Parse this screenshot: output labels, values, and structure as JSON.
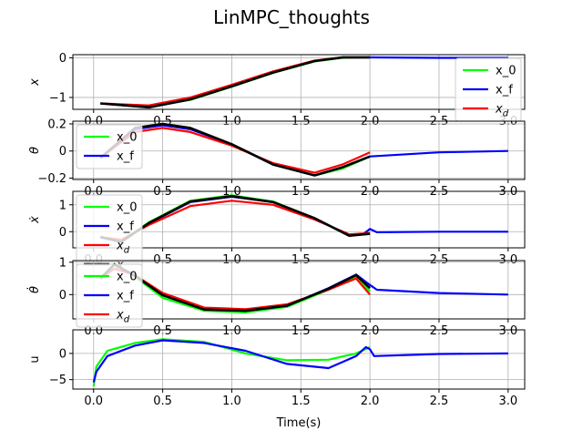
{
  "chart_data": {
    "type": "line",
    "title": "LinMPC_thoughts",
    "colors": {
      "x_0": "#00ff00",
      "x_f": "#0000ff",
      "x_d": "#ff0000",
      "x": "#000000"
    },
    "subplots": [
      {
        "ylabel": "x",
        "ylim": [
          -1.3,
          0.08
        ],
        "yticks": [
          0,
          -1
        ],
        "xticks_visible": false,
        "legend": [
          "x_0",
          "x_f",
          "x_d"
        ],
        "legend_position": "right",
        "series": [
          {
            "name": "x_f",
            "x": [
              0.05,
              0.4,
              0.7,
              1.0,
              1.3,
              1.6,
              1.8,
              2.0,
              2.5,
              3.0
            ],
            "y": [
              -1.15,
              -1.25,
              -1.05,
              -0.72,
              -0.37,
              -0.08,
              0.01,
              0.01,
              0.0,
              0.0
            ]
          },
          {
            "name": "x_0",
            "x": [
              0.05,
              0.4,
              0.7,
              1.0,
              1.3,
              1.6,
              1.8,
              2.0
            ],
            "y": [
              -1.15,
              -1.24,
              -1.06,
              -0.73,
              -0.38,
              -0.09,
              0.0,
              0.01
            ]
          },
          {
            "name": "x_d",
            "x": [
              0.05,
              0.4,
              0.7,
              1.0,
              1.3,
              1.6,
              1.8,
              2.0
            ],
            "y": [
              -1.15,
              -1.2,
              -1.0,
              -0.68,
              -0.34,
              -0.07,
              0.01,
              0.01
            ]
          },
          {
            "name": "x",
            "x": [
              0.05,
              0.4,
              0.7,
              1.0,
              1.3,
              1.6,
              1.8,
              2.0
            ],
            "y": [
              -1.15,
              -1.25,
              -1.05,
              -0.72,
              -0.37,
              -0.08,
              0.01,
              0.01
            ]
          }
        ]
      },
      {
        "ylabel": "θ",
        "ylim": [
          -0.21,
          0.22
        ],
        "yticks": [
          0.2,
          0.0,
          -0.2
        ],
        "xticks_visible": false,
        "legend": [
          "x_0",
          "x_f"
        ],
        "legend_position": "left",
        "series": [
          {
            "name": "x_f",
            "x": [
              0.05,
              0.3,
              0.5,
              0.7,
              1.0,
              1.3,
              1.6,
              1.8,
              2.0,
              2.5,
              3.0
            ],
            "y": [
              -0.05,
              0.16,
              0.19,
              0.16,
              0.05,
              -0.1,
              -0.18,
              -0.12,
              -0.04,
              -0.01,
              0.0
            ]
          },
          {
            "name": "x_0",
            "x": [
              0.05,
              0.3,
              0.5,
              0.7,
              1.0,
              1.3,
              1.6,
              1.8,
              2.0
            ],
            "y": [
              -0.05,
              0.17,
              0.2,
              0.17,
              0.05,
              -0.1,
              -0.18,
              -0.13,
              -0.04
            ]
          },
          {
            "name": "x_d",
            "x": [
              0.05,
              0.3,
              0.5,
              0.7,
              1.0,
              1.3,
              1.6,
              1.8,
              2.0
            ],
            "y": [
              -0.05,
              0.14,
              0.17,
              0.14,
              0.04,
              -0.09,
              -0.16,
              -0.1,
              -0.01
            ]
          },
          {
            "name": "x",
            "x": [
              0.05,
              0.3,
              0.5,
              0.7,
              1.0,
              1.3,
              1.6,
              1.8,
              2.0
            ],
            "y": [
              -0.05,
              0.17,
              0.2,
              0.17,
              0.05,
              -0.1,
              -0.18,
              -0.12,
              -0.04
            ]
          }
        ]
      },
      {
        "ylabel": "ẋ",
        "ylim": [
          -0.6,
          1.5
        ],
        "yticks": [
          1,
          0
        ],
        "xticks_visible": false,
        "legend": [
          "x_0",
          "x_f",
          "x_d",
          "x"
        ],
        "legend_position": "left",
        "series": [
          {
            "name": "x_f",
            "x": [
              0.05,
              0.2,
              0.4,
              0.7,
              1.0,
              1.3,
              1.6,
              1.85,
              1.95,
              2.0,
              2.05,
              2.5,
              3.0
            ],
            "y": [
              -0.2,
              -0.35,
              0.3,
              1.1,
              1.3,
              1.1,
              0.5,
              -0.15,
              -0.1,
              0.1,
              -0.02,
              0.0,
              0.0
            ]
          },
          {
            "name": "x_0",
            "x": [
              0.05,
              0.2,
              0.4,
              0.7,
              1.0,
              1.3,
              1.6,
              1.85,
              2.0
            ],
            "y": [
              -0.2,
              -0.35,
              0.35,
              1.15,
              1.35,
              1.12,
              0.5,
              -0.15,
              -0.08
            ]
          },
          {
            "name": "x_d",
            "x": [
              0.05,
              0.2,
              0.4,
              0.7,
              1.0,
              1.3,
              1.6,
              1.85,
              2.0
            ],
            "y": [
              -0.2,
              -0.3,
              0.25,
              0.95,
              1.15,
              1.0,
              0.45,
              -0.1,
              -0.05
            ]
          },
          {
            "name": "x",
            "x": [
              0.05,
              0.2,
              0.4,
              0.7,
              1.0,
              1.3,
              1.6,
              1.85,
              2.0
            ],
            "y": [
              -0.2,
              -0.38,
              0.32,
              1.12,
              1.32,
              1.1,
              0.5,
              -0.15,
              -0.08
            ]
          }
        ]
      },
      {
        "ylabel": "θ̇",
        "ylim": [
          -0.75,
          1.05
        ],
        "yticks": [
          1,
          0
        ],
        "xticks_visible": false,
        "legend": [
          "x_0",
          "x_f",
          "x_d"
        ],
        "legend_position": "left",
        "series": [
          {
            "name": "x_f",
            "x": [
              0.05,
              0.15,
              0.3,
              0.5,
              0.8,
              1.1,
              1.4,
              1.7,
              1.9,
              2.0,
              2.05,
              2.5,
              3.0
            ],
            "y": [
              0.5,
              0.92,
              0.6,
              0.0,
              -0.45,
              -0.5,
              -0.35,
              0.2,
              0.62,
              0.3,
              0.15,
              0.05,
              0.0
            ]
          },
          {
            "name": "x_0",
            "x": [
              0.05,
              0.15,
              0.3,
              0.5,
              0.8,
              1.1,
              1.4,
              1.7,
              1.9,
              2.0
            ],
            "y": [
              0.5,
              0.95,
              0.55,
              -0.1,
              -0.5,
              -0.55,
              -0.38,
              0.15,
              0.55,
              0.1
            ]
          },
          {
            "name": "x_d",
            "x": [
              0.05,
              0.15,
              0.3,
              0.5,
              0.8,
              1.1,
              1.4,
              1.7,
              1.9,
              2.0
            ],
            "y": [
              0.5,
              0.8,
              0.6,
              0.05,
              -0.4,
              -0.45,
              -0.3,
              0.15,
              0.5,
              0.0
            ]
          },
          {
            "name": "x",
            "x": [
              0.05,
              0.15,
              0.3,
              0.5,
              0.8,
              1.1,
              1.4,
              1.7,
              1.9,
              2.0
            ],
            "y": [
              0.5,
              0.93,
              0.58,
              -0.02,
              -0.46,
              -0.5,
              -0.34,
              0.18,
              0.6,
              0.2
            ]
          }
        ]
      },
      {
        "ylabel": "u",
        "ylim": [
          -6.8,
          4.5
        ],
        "yticks": [
          0,
          -5
        ],
        "xticks_visible": true,
        "xlabel": "Time(s)",
        "legend": [],
        "series": [
          {
            "name": "x_f",
            "x": [
              0.0,
              0.02,
              0.1,
              0.3,
              0.5,
              0.8,
              1.1,
              1.4,
              1.7,
              1.9,
              1.97,
              2.0,
              2.03,
              2.5,
              3.0
            ],
            "y": [
              -5.5,
              -3.5,
              -0.5,
              1.5,
              2.5,
              2.0,
              0.5,
              -2.0,
              -2.8,
              -0.5,
              1.2,
              0.8,
              -0.5,
              -0.1,
              0.0
            ]
          },
          {
            "name": "x_0",
            "x": [
              0.0,
              0.02,
              0.1,
              0.3,
              0.5,
              0.8,
              1.1,
              1.4,
              1.7,
              1.9,
              2.0
            ],
            "y": [
              -6.3,
              -2.5,
              0.5,
              2.0,
              2.7,
              2.2,
              0.0,
              -1.3,
              -1.2,
              0.0,
              1.2
            ]
          }
        ]
      }
    ],
    "xlim": [
      -0.15,
      3.12
    ],
    "xticks": [
      0.0,
      0.5,
      1.0,
      1.5,
      2.0,
      2.5,
      3.0
    ],
    "xtick_labels": [
      "0.0",
      "0.5",
      "1.0",
      "1.5",
      "2.0",
      "2.5",
      "3.0"
    ],
    "xlabel": "Time(s)",
    "legend_labels": {
      "x_0": "x_0",
      "x_f": "x_f",
      "x_d": "x_d",
      "x": "x"
    }
  }
}
